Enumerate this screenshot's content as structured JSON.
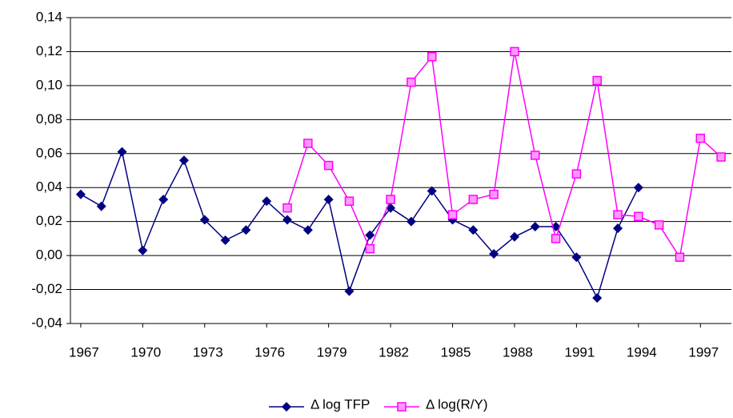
{
  "chart_data": {
    "type": "line",
    "x": [
      1967,
      1968,
      1969,
      1970,
      1971,
      1972,
      1973,
      1974,
      1975,
      1976,
      1977,
      1978,
      1979,
      1980,
      1981,
      1982,
      1983,
      1984,
      1985,
      1986,
      1987,
      1988,
      1989,
      1990,
      1991,
      1992,
      1993,
      1994,
      1995,
      1996,
      1997,
      1998
    ],
    "xlim": [
      1966.5,
      1998.5
    ],
    "xticks": [
      1967,
      1970,
      1973,
      1976,
      1979,
      1982,
      1985,
      1988,
      1991,
      1994,
      1997
    ],
    "ylim": [
      -0.04,
      0.14
    ],
    "yticks": [
      {
        "value": -0.04,
        "label": "-0,04"
      },
      {
        "value": -0.02,
        "label": "-0,02"
      },
      {
        "value": 0,
        "label": "0,00"
      },
      {
        "value": 0.02,
        "label": "0,02"
      },
      {
        "value": 0.04,
        "label": "0,04"
      },
      {
        "value": 0.06,
        "label": "0,06"
      },
      {
        "value": 0.08,
        "label": "0,08"
      },
      {
        "value": 0.1,
        "label": "0,10"
      },
      {
        "value": 0.12,
        "label": "0,12"
      },
      {
        "value": 0.14,
        "label": "0,14"
      }
    ],
    "grid": true,
    "legend": "bottom",
    "series": [
      {
        "name": "Δ  log TFP",
        "color": "#000080",
        "marker": "diamond",
        "values": [
          0.036,
          0.029,
          0.061,
          0.003,
          0.033,
          0.056,
          0.021,
          0.009,
          0.015,
          0.032,
          0.021,
          0.015,
          0.033,
          -0.021,
          0.012,
          0.028,
          0.02,
          0.038,
          0.021,
          0.015,
          0.001,
          0.011,
          0.017,
          0.017,
          -0.001,
          -0.025,
          0.016,
          0.04,
          null,
          null,
          null,
          null
        ]
      },
      {
        "name": "Δ  log(R/Y)",
        "color": "#FF00FF",
        "marker": "square",
        "values": [
          null,
          null,
          null,
          null,
          null,
          null,
          null,
          null,
          null,
          null,
          0.028,
          0.066,
          0.053,
          0.032,
          0.004,
          0.033,
          0.102,
          0.117,
          0.024,
          0.033,
          0.036,
          0.12,
          0.059,
          0.01,
          0.048,
          0.103,
          0.024,
          0.023,
          0.018,
          -0.001,
          0.069,
          0.058
        ]
      }
    ]
  }
}
